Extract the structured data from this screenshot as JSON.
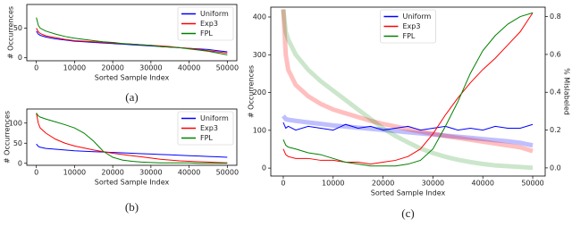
{
  "chart_data": [
    {
      "type": "line",
      "caption": "(a)",
      "xlabel": "Sorted Sample Index",
      "ylabel": "# Occurrences",
      "x": [
        0,
        500,
        1000,
        2500,
        5000,
        7500,
        10000,
        12500,
        15000,
        17500,
        20000,
        22500,
        25000,
        27500,
        30000,
        32500,
        35000,
        37500,
        40000,
        42500,
        45000,
        47500,
        50000
      ],
      "xlim": [
        -2500,
        52500
      ],
      "xticks": [
        0,
        10000,
        20000,
        30000,
        40000,
        50000
      ],
      "ylim": [
        -5,
        90
      ],
      "yticks": [
        0,
        50
      ],
      "legend": "upper right",
      "series": [
        {
          "name": "Uniform",
          "color": "#0000ff",
          "values": [
            45,
            40,
            38,
            35,
            32,
            30,
            28,
            27,
            26,
            25,
            24,
            23,
            22,
            21,
            20,
            19,
            18,
            17,
            16,
            15,
            14,
            12,
            10
          ]
        },
        {
          "name": "Exp3",
          "color": "#ff0000",
          "values": [
            50,
            44,
            41,
            37,
            34,
            31,
            29,
            28,
            27,
            26,
            25,
            24,
            23,
            22,
            21,
            20,
            19,
            17,
            16,
            14,
            12,
            10,
            8
          ]
        },
        {
          "name": "FPL",
          "color": "#008000",
          "values": [
            68,
            55,
            50,
            45,
            40,
            36,
            33,
            31,
            29,
            27,
            26,
            24,
            23,
            22,
            21,
            19,
            18,
            17,
            15,
            13,
            11,
            8,
            5
          ]
        }
      ]
    },
    {
      "type": "line",
      "caption": "(b)",
      "xlabel": "Sorted Sample Index",
      "ylabel": "# Occurrences",
      "x": [
        0,
        500,
        1000,
        2500,
        5000,
        7500,
        10000,
        12500,
        15000,
        17500,
        20000,
        22500,
        25000,
        27500,
        30000,
        32500,
        35000,
        37500,
        40000,
        42500,
        45000,
        47500,
        50000
      ],
      "xlim": [
        -2500,
        52500
      ],
      "xticks": [
        0,
        10000,
        20000,
        30000,
        40000,
        50000
      ],
      "ylim": [
        -5,
        135
      ],
      "yticks": [
        0,
        50,
        100
      ],
      "legend": "upper right",
      "series": [
        {
          "name": "Uniform",
          "color": "#0000ff",
          "values": [
            48,
            42,
            40,
            37,
            35,
            33,
            31,
            30,
            29,
            28,
            27,
            26,
            25,
            24,
            23,
            22,
            21,
            20,
            19,
            18,
            17,
            16,
            15
          ]
        },
        {
          "name": "Exp3",
          "color": "#ff0000",
          "values": [
            125,
            100,
            88,
            75,
            60,
            50,
            43,
            38,
            33,
            29,
            25,
            22,
            19,
            16,
            13,
            10,
            8,
            6,
            5,
            4,
            3,
            2,
            1
          ]
        },
        {
          "name": "FPL",
          "color": "#008000",
          "values": [
            125,
            118,
            115,
            110,
            103,
            96,
            88,
            75,
            55,
            30,
            15,
            8,
            5,
            3,
            2,
            1,
            1,
            1,
            1,
            0,
            0,
            0,
            0
          ]
        }
      ]
    },
    {
      "type": "line",
      "caption": "(c)",
      "xlabel": "Sorted Sample Index",
      "ylabel": "# Occurrences",
      "y2label": "% Mislabeled",
      "x": [
        0,
        500,
        1000,
        2500,
        5000,
        7500,
        10000,
        12500,
        15000,
        17500,
        20000,
        22500,
        25000,
        27500,
        30000,
        32500,
        35000,
        37500,
        40000,
        42500,
        45000,
        47500,
        50000
      ],
      "xlim": [
        -2500,
        52500
      ],
      "xticks": [
        0,
        10000,
        20000,
        30000,
        40000,
        50000
      ],
      "ylim": [
        -21,
        426
      ],
      "yticks": [
        0,
        100,
        200,
        300,
        400
      ],
      "y2lim": [
        -0.043,
        0.85
      ],
      "y2ticks": [
        {
          "value": 0,
          "label": "0.0"
        },
        0.2,
        0.4,
        0.6,
        0.8
      ],
      "legend": "upper center",
      "series": [
        {
          "color": "#0000ff",
          "alpha": 0.25,
          "linewidth": 5,
          "values": [
            138,
            130,
            128,
            125,
            121,
            117,
            113,
            110,
            107,
            104,
            101,
            98,
            95,
            92,
            89,
            86,
            83,
            80,
            77,
            74,
            71,
            67,
            60
          ]
        },
        {
          "color": "#ff0000",
          "alpha": 0.25,
          "linewidth": 5,
          "values": [
            420,
            300,
            260,
            220,
            190,
            170,
            155,
            145,
            135,
            125,
            117,
            110,
            103,
            97,
            91,
            85,
            80,
            75,
            70,
            65,
            60,
            55,
            45
          ]
        },
        {
          "color": "#008000",
          "alpha": 0.2,
          "linewidth": 5,
          "values": [
            420,
            360,
            340,
            300,
            260,
            230,
            205,
            180,
            155,
            130,
            105,
            85,
            68,
            52,
            40,
            30,
            22,
            16,
            11,
            7,
            5,
            3,
            1
          ]
        },
        {
          "name": "Uniform",
          "color": "#0000ff",
          "axis": "y2",
          "values": [
            0.24,
            0.21,
            0.22,
            0.2,
            0.22,
            0.21,
            0.2,
            0.23,
            0.21,
            0.22,
            0.2,
            0.21,
            0.22,
            0.2,
            0.21,
            0.22,
            0.2,
            0.21,
            0.2,
            0.22,
            0.21,
            0.21,
            0.23
          ]
        },
        {
          "name": "Exp3",
          "color": "#ff0000",
          "axis": "y2",
          "values": [
            0.1,
            0.07,
            0.06,
            0.05,
            0.05,
            0.04,
            0.04,
            0.03,
            0.03,
            0.02,
            0.03,
            0.04,
            0.06,
            0.1,
            0.18,
            0.28,
            0.37,
            0.45,
            0.52,
            0.58,
            0.65,
            0.72,
            0.82
          ]
        },
        {
          "name": "FPL",
          "color": "#008000",
          "axis": "y2",
          "values": [
            0.15,
            0.12,
            0.11,
            0.1,
            0.08,
            0.07,
            0.05,
            0.03,
            0.02,
            0.01,
            0.01,
            0.01,
            0.02,
            0.04,
            0.1,
            0.22,
            0.35,
            0.5,
            0.62,
            0.7,
            0.76,
            0.8,
            0.82
          ]
        }
      ]
    }
  ]
}
